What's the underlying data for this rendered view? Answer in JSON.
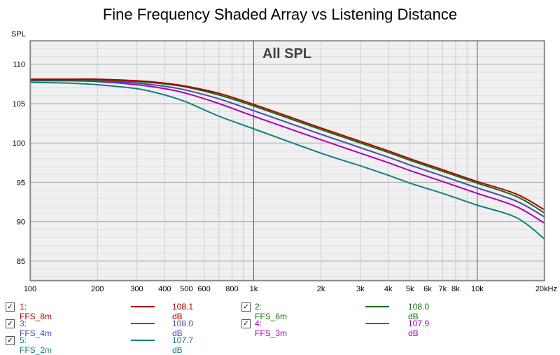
{
  "title": "Fine Frequency Shaded Array vs Listening Distance",
  "chart_data": {
    "type": "line",
    "title": "Fine Frequency Shaded Array vs Listening Distance",
    "inner_title": "All SPL",
    "ylabel": "SPL",
    "xlabel": "",
    "xscale": "log",
    "xlim": [
      100,
      20000
    ],
    "ylim": [
      82.5,
      113
    ],
    "y_ticks": [
      85,
      90,
      95,
      100,
      105,
      110
    ],
    "x_ticks": [
      {
        "v": 100,
        "label": "100"
      },
      {
        "v": 200,
        "label": "200"
      },
      {
        "v": 300,
        "label": "300"
      },
      {
        "v": 400,
        "label": "400"
      },
      {
        "v": 500,
        "label": "500"
      },
      {
        "v": 600,
        "label": "600"
      },
      {
        "v": 800,
        "label": "800"
      },
      {
        "v": 1000,
        "label": "1k"
      },
      {
        "v": 2000,
        "label": "2k"
      },
      {
        "v": 3000,
        "label": "3k"
      },
      {
        "v": 4000,
        "label": "4k"
      },
      {
        "v": 5000,
        "label": "5k"
      },
      {
        "v": 6000,
        "label": "6k"
      },
      {
        "v": 7000,
        "label": "7k"
      },
      {
        "v": 8000,
        "label": "8k"
      },
      {
        "v": 10000,
        "label": "10k"
      },
      {
        "v": 20000,
        "label": "20kHz"
      }
    ],
    "x_points": [
      100,
      150,
      200,
      300,
      400,
      500,
      700,
      1000,
      2000,
      3000,
      4000,
      5000,
      7000,
      10000,
      15000,
      20000
    ],
    "series": [
      {
        "name": "1: FFS_8m",
        "color": "#b00000",
        "value": "108.1 dB",
        "values": [
          108.1,
          108.1,
          108.1,
          107.9,
          107.6,
          107.2,
          106.3,
          104.9,
          101.9,
          100.2,
          99.0,
          98.0,
          96.6,
          95.1,
          93.5,
          91.5
        ]
      },
      {
        "name": "2: FFS_6m",
        "color": "#107010",
        "value": "108.0 dB",
        "values": [
          108.0,
          108.0,
          108.0,
          107.8,
          107.5,
          107.1,
          106.1,
          104.7,
          101.7,
          100.0,
          98.8,
          97.8,
          96.4,
          94.9,
          93.2,
          91.1
        ]
      },
      {
        "name": "3: FFS_4m",
        "color": "#4a4ab0",
        "value": "108.0 dB",
        "values": [
          108.0,
          108.0,
          107.9,
          107.6,
          107.2,
          106.7,
          105.6,
          104.1,
          101.1,
          99.4,
          98.2,
          97.2,
          95.8,
          94.3,
          92.6,
          90.6
        ]
      },
      {
        "name": "4: FFS_3m",
        "color": "#b000b0",
        "value": "107.9 dB",
        "values": [
          107.9,
          107.9,
          107.8,
          107.4,
          106.9,
          106.3,
          105.0,
          103.4,
          100.4,
          98.7,
          97.5,
          96.5,
          95.1,
          93.6,
          91.9,
          89.8
        ]
      },
      {
        "name": "5: FFS_2m",
        "color": "#108080",
        "value": "107.7 dB",
        "values": [
          107.7,
          107.6,
          107.4,
          106.9,
          106.1,
          105.2,
          103.4,
          101.8,
          98.7,
          97.1,
          95.9,
          94.9,
          93.6,
          92.1,
          90.5,
          87.8
        ]
      }
    ]
  }
}
